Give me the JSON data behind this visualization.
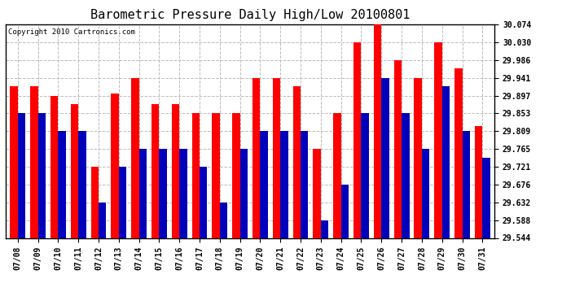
{
  "title": "Barometric Pressure Daily High/Low 20100801",
  "copyright": "Copyright 2010 Cartronics.com",
  "dates": [
    "07/08",
    "07/09",
    "07/10",
    "07/11",
    "07/12",
    "07/13",
    "07/14",
    "07/15",
    "07/16",
    "07/17",
    "07/18",
    "07/19",
    "07/20",
    "07/21",
    "07/22",
    "07/23",
    "07/24",
    "07/25",
    "07/26",
    "07/27",
    "07/28",
    "07/29",
    "07/30",
    "07/31"
  ],
  "highs": [
    29.921,
    29.921,
    29.897,
    29.877,
    29.721,
    29.903,
    29.941,
    29.877,
    29.877,
    29.853,
    29.853,
    29.853,
    29.941,
    29.941,
    29.921,
    29.765,
    29.853,
    30.03,
    30.074,
    29.986,
    29.941,
    30.03,
    29.965,
    29.821
  ],
  "lows": [
    29.853,
    29.853,
    29.809,
    29.809,
    29.632,
    29.721,
    29.765,
    29.765,
    29.765,
    29.721,
    29.632,
    29.765,
    29.809,
    29.809,
    29.809,
    29.588,
    29.676,
    29.853,
    29.941,
    29.853,
    29.765,
    29.921,
    29.809,
    29.743
  ],
  "bar_color_high": "#ff0000",
  "bar_color_low": "#0000bb",
  "background_color": "#ffffff",
  "plot_background": "#ffffff",
  "ylim_min": 29.544,
  "ylim_max": 30.074,
  "yticks": [
    29.544,
    29.588,
    29.632,
    29.676,
    29.721,
    29.765,
    29.809,
    29.853,
    29.897,
    29.941,
    29.986,
    30.03,
    30.074
  ],
  "grid_color": "#bbbbbb",
  "bar_width": 0.38,
  "title_fontsize": 11,
  "tick_fontsize": 7,
  "copyright_fontsize": 6.5
}
